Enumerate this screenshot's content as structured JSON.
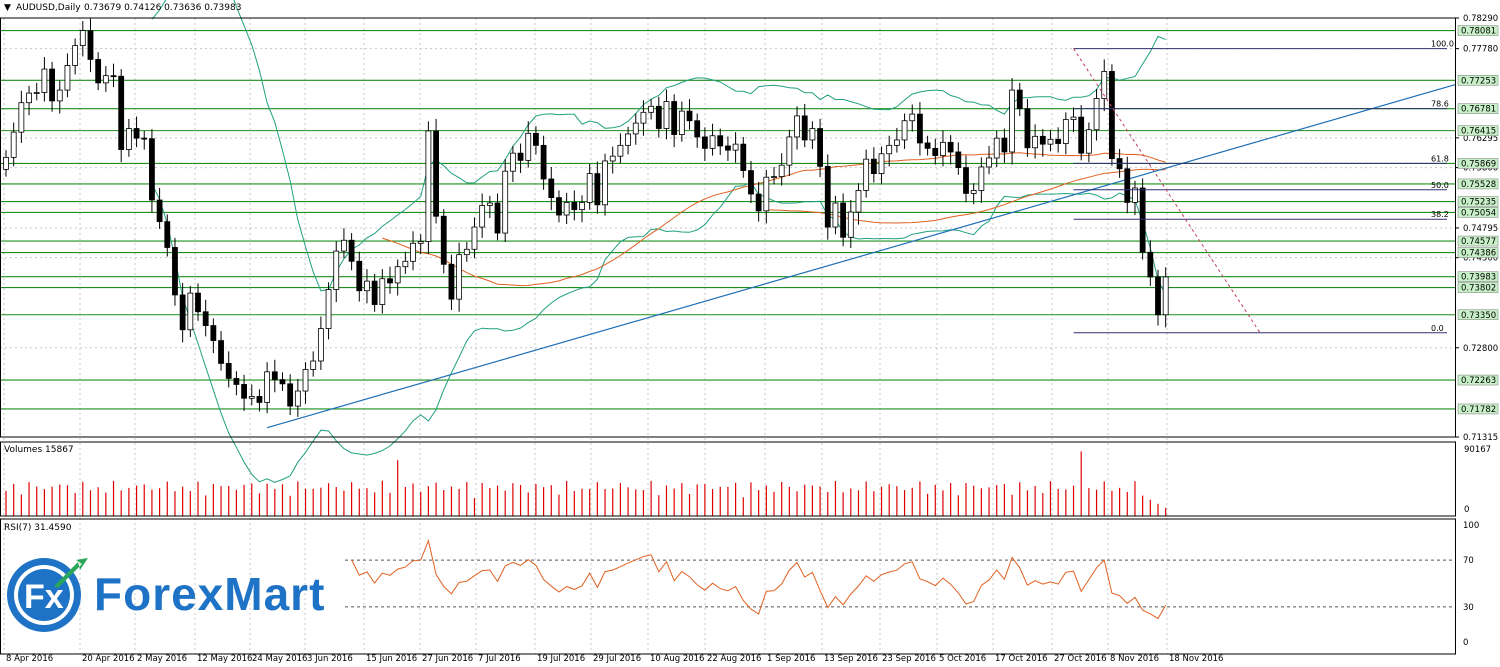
{
  "header": {
    "symbol": "AUDUSD,Daily",
    "ohlc": "0.73679 0.74126 0.73636 0.73983"
  },
  "chart_data": {
    "type": "candlestick",
    "symbol": "AUDUSD",
    "timeframe": "Daily",
    "x_ticks": [
      "8 Apr 2016",
      "20 Apr 2016",
      "2 May 2016",
      "12 May 2016",
      "24 May 2016",
      "3 Jun 2016",
      "15 Jun 2016",
      "27 Jun 2016",
      "7 Jul 2016",
      "19 Jul 2016",
      "29 Jul 2016",
      "10 Aug 2016",
      "22 Aug 2016",
      "1 Sep 2016",
      "13 Sep 2016",
      "23 Sep 2016",
      "5 Oct 2016",
      "17 Oct 2016",
      "27 Oct 2016",
      "8 Nov 2016",
      "18 Nov 2016"
    ],
    "y_ticks": [
      "0.78290",
      "0.77780",
      "0.76295",
      "0.75800",
      "0.74795",
      "0.74300",
      "0.72800",
      "0.71315"
    ],
    "ylim": [
      0.71315,
      0.7829
    ],
    "close_series": [
      0.7597,
      0.7639,
      0.7688,
      0.7704,
      0.7705,
      0.7744,
      0.7691,
      0.7709,
      0.775,
      0.7783,
      0.7808,
      0.776,
      0.7721,
      0.7733,
      0.7732,
      0.761,
      0.7645,
      0.7629,
      0.7628,
      0.7526,
      0.749,
      0.7447,
      0.7368,
      0.731,
      0.7371,
      0.734,
      0.7317,
      0.7292,
      0.7254,
      0.7229,
      0.7219,
      0.7196,
      0.7199,
      0.7189,
      0.724,
      0.7227,
      0.722,
      0.7183,
      0.7208,
      0.7244,
      0.7258,
      0.7312,
      0.7377,
      0.7441,
      0.7459,
      0.7424,
      0.7375,
      0.7391,
      0.7352,
      0.7395,
      0.7388,
      0.7415,
      0.7424,
      0.7454,
      0.7457,
      0.7641,
      0.7499,
      0.7419,
      0.7361,
      0.7435,
      0.7444,
      0.7481,
      0.7517,
      0.7521,
      0.7471,
      0.7574,
      0.7604,
      0.7592,
      0.7637,
      0.7617,
      0.7561,
      0.753,
      0.7501,
      0.7522,
      0.751,
      0.7522,
      0.757,
      0.7518,
      0.7591,
      0.7599,
      0.7617,
      0.7636,
      0.7654,
      0.7672,
      0.7682,
      0.7645,
      0.769,
      0.7635,
      0.7674,
      0.7658,
      0.7631,
      0.7612,
      0.7633,
      0.7616,
      0.7609,
      0.7619,
      0.7575,
      0.7536,
      0.7508,
      0.7564,
      0.7565,
      0.7584,
      0.7631,
      0.7666,
      0.7626,
      0.7645,
      0.7582,
      0.7481,
      0.7521,
      0.7464,
      0.7506,
      0.7542,
      0.7594,
      0.757,
      0.7603,
      0.7617,
      0.7626,
      0.7658,
      0.7669,
      0.7621,
      0.7612,
      0.76,
      0.7622,
      0.7606,
      0.758,
      0.7537,
      0.7542,
      0.7581,
      0.7596,
      0.7629,
      0.7606,
      0.7709,
      0.7678,
      0.7613,
      0.7632,
      0.7619,
      0.7627,
      0.762,
      0.766,
      0.7664,
      0.7604,
      0.7643,
      0.7695,
      0.774,
      0.7595,
      0.7578,
      0.7522,
      0.7546,
      0.7439,
      0.7398,
      0.7335,
      0.7398
    ],
    "support_resistance": [
      "0.78081",
      "0.77253",
      "0.76781",
      "0.76415",
      "0.75869",
      "0.75528",
      "0.75235",
      "0.75054",
      "0.74577",
      "0.74386",
      "0.73983",
      "0.73802",
      "0.73350",
      "0.72263",
      "0.71782"
    ],
    "fibonacci": [
      "100.0",
      "78.6",
      "61.8",
      "50.0",
      "38.2",
      "0.0"
    ],
    "volumes": {
      "label": "Volumes 15867",
      "ymax": "90167",
      "ymin": "0"
    },
    "rsi": {
      "label": "RSI(7) 31.4590",
      "levels": [
        "100",
        "70",
        "30",
        "0"
      ],
      "last": 31.459
    }
  },
  "colors": {
    "bull": "#ffffff",
    "bear": "#000000",
    "sr_line": "#1e8f1e",
    "label_bg": "#c8f0c8",
    "bollinger": "#20a080",
    "ma": "#e06020",
    "trendline": "#1e6fb5",
    "rsi": "#e06020",
    "volume": "#e00000"
  },
  "logo": {
    "fx": "Fx",
    "word1": "Forex",
    "word2": "Mart"
  }
}
